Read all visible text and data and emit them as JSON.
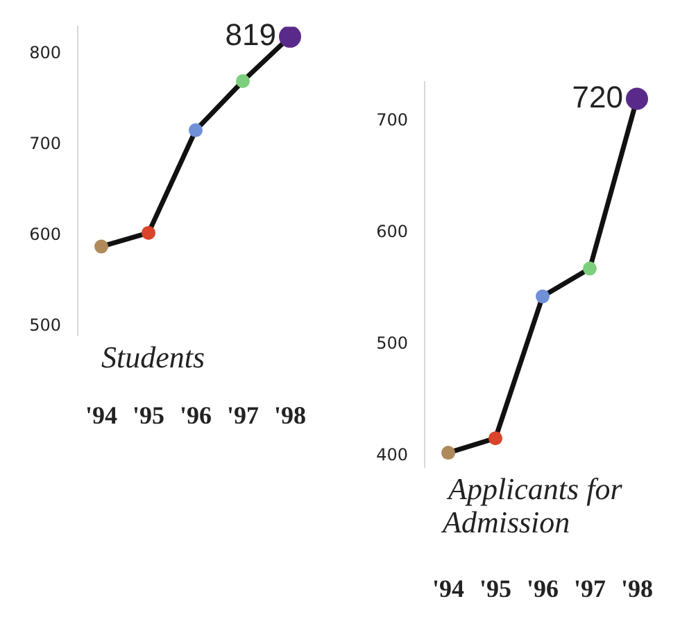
{
  "chart_data": [
    {
      "type": "line",
      "title": "Students",
      "categories": [
        "'94",
        "'95",
        "'96",
        "'97",
        "'98"
      ],
      "values": [
        588,
        603,
        716,
        770,
        819
      ],
      "color": "#111111",
      "colors": [
        "#b08a5a",
        "#d9442a",
        "#7090d8",
        "#7ccf7c",
        "#5a2a8a"
      ],
      "value_labels": [
        null,
        null,
        null,
        null,
        "819"
      ],
      "marker": "circle",
      "ylim": [
        490,
        830
      ],
      "yticks": [
        500,
        600,
        700,
        800
      ],
      "grid": false
    },
    {
      "type": "line",
      "title": "Applicants for Admission",
      "categories": [
        "'94",
        "'95",
        "'96",
        "'97",
        "'98"
      ],
      "values": [
        403,
        416,
        543,
        568,
        720
      ],
      "color": "#111111",
      "colors": [
        "#b08a5a",
        "#d9442a",
        "#7090d8",
        "#7ccf7c",
        "#5a2a8a"
      ],
      "value_labels": [
        null,
        null,
        null,
        null,
        "720"
      ],
      "marker": "circle",
      "ylim": [
        390,
        735
      ],
      "yticks": [
        400,
        500,
        600,
        700
      ],
      "grid": false
    }
  ]
}
